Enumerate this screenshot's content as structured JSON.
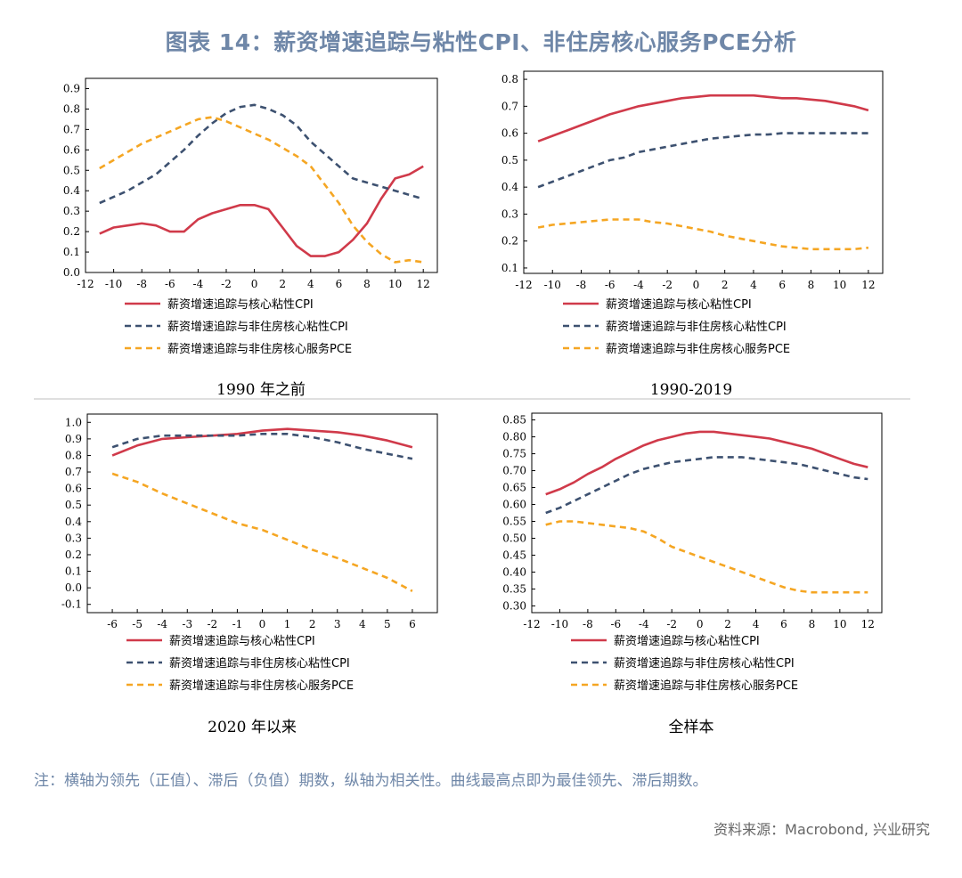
{
  "title": "图表 14：薪资增速追踪与粘性CPI、非住房核心服务PCE分析",
  "note": "注：横轴为领先（正值）、滞后（负值）期数，纵轴为相关性。曲线最高点即为最佳领先、滞后期数。",
  "source": "资料来源：Macrobond, 兴业研究",
  "colors": {
    "sticky_cpi": "#d03a4a",
    "nonhousing_cpi": "#3d5170",
    "pce": "#f5a623"
  },
  "legend": [
    {
      "name": "薪资增速追踪与核心粘性CPI",
      "style": "solid",
      "color": "#d03a4a"
    },
    {
      "name": "薪资增速追踪与非住房核心粘性CPI",
      "style": "dashed",
      "color": "#3d5170"
    },
    {
      "name": "薪资增速追踪与非住房核心服务PCE",
      "style": "dashed",
      "color": "#f5a623"
    }
  ],
  "chart_data": [
    {
      "type": "line",
      "caption": "1990 年之前",
      "xlim": [
        -12,
        13
      ],
      "xticks": [
        -12,
        -10,
        -8,
        -6,
        -4,
        -2,
        0,
        2,
        4,
        6,
        8,
        10,
        12
      ],
      "ylim": [
        0,
        0.95
      ],
      "yticks": [
        0,
        0.1,
        0.2,
        0.3,
        0.4,
        0.5,
        0.6,
        0.7,
        0.8,
        0.9
      ],
      "ytick_labels": [
        "0.0",
        "0.1",
        "0.2",
        "0.3",
        "0.4",
        "0.5",
        "0.6",
        "0.7",
        "0.8",
        "0.9"
      ],
      "series": [
        {
          "name": "薪资增速追踪与核心粘性CPI",
          "x": [
            -11,
            -10,
            -9,
            -8,
            -7,
            -6,
            -5,
            -4,
            -3,
            -2,
            -1,
            0,
            1,
            2,
            3,
            4,
            5,
            6,
            7,
            8,
            9,
            10,
            11,
            12
          ],
          "values": [
            0.19,
            0.22,
            0.23,
            0.24,
            0.23,
            0.2,
            0.2,
            0.26,
            0.29,
            0.31,
            0.33,
            0.33,
            0.31,
            0.22,
            0.13,
            0.08,
            0.08,
            0.1,
            0.16,
            0.24,
            0.36,
            0.46,
            0.48,
            0.52
          ]
        },
        {
          "name": "薪资增速追踪与非住房核心粘性CPI",
          "x": [
            -11,
            -10,
            -9,
            -8,
            -7,
            -6,
            -5,
            -4,
            -3,
            -2,
            -1,
            0,
            1,
            2,
            3,
            4,
            5,
            6,
            7,
            8,
            9,
            10,
            11,
            12
          ],
          "values": [
            0.34,
            0.37,
            0.4,
            0.44,
            0.48,
            0.54,
            0.6,
            0.67,
            0.73,
            0.78,
            0.81,
            0.82,
            0.8,
            0.77,
            0.72,
            0.64,
            0.58,
            0.52,
            0.46,
            0.44,
            0.42,
            0.4,
            0.38,
            0.36
          ]
        },
        {
          "name": "薪资增速追踪与非住房核心服务PCE",
          "x": [
            -11,
            -10,
            -9,
            -8,
            -7,
            -6,
            -5,
            -4,
            -3,
            -2,
            -1,
            0,
            1,
            2,
            3,
            4,
            5,
            6,
            7,
            8,
            9,
            10,
            11,
            12
          ],
          "values": [
            0.51,
            0.55,
            0.59,
            0.63,
            0.66,
            0.69,
            0.72,
            0.75,
            0.76,
            0.74,
            0.71,
            0.68,
            0.65,
            0.61,
            0.57,
            0.52,
            0.43,
            0.34,
            0.23,
            0.15,
            0.09,
            0.05,
            0.06,
            0.05
          ]
        }
      ]
    },
    {
      "type": "line",
      "caption": "1990-2019",
      "xlim": [
        -12,
        13
      ],
      "xticks": [
        -12,
        -10,
        -8,
        -6,
        -4,
        -2,
        0,
        2,
        4,
        6,
        8,
        10,
        12
      ],
      "ylim": [
        0.08,
        0.83
      ],
      "yticks": [
        0.1,
        0.2,
        0.3,
        0.4,
        0.5,
        0.6,
        0.7,
        0.8
      ],
      "ytick_labels": [
        "0.1",
        "0.2",
        "0.3",
        "0.4",
        "0.5",
        "0.6",
        "0.7",
        "0.8"
      ],
      "series": [
        {
          "name": "薪资增速追踪与核心粘性CPI",
          "x": [
            -11,
            -10,
            -9,
            -8,
            -7,
            -6,
            -5,
            -4,
            -3,
            -2,
            -1,
            0,
            1,
            2,
            3,
            4,
            5,
            6,
            7,
            8,
            9,
            10,
            11,
            12
          ],
          "values": [
            0.57,
            0.59,
            0.61,
            0.63,
            0.65,
            0.67,
            0.685,
            0.7,
            0.71,
            0.72,
            0.73,
            0.735,
            0.74,
            0.74,
            0.74,
            0.74,
            0.735,
            0.73,
            0.73,
            0.725,
            0.72,
            0.71,
            0.7,
            0.685
          ]
        },
        {
          "name": "薪资增速追踪与非住房核心粘性CPI",
          "x": [
            -11,
            -10,
            -9,
            -8,
            -7,
            -6,
            -5,
            -4,
            -3,
            -2,
            -1,
            0,
            1,
            2,
            3,
            4,
            5,
            6,
            7,
            8,
            9,
            10,
            11,
            12
          ],
          "values": [
            0.4,
            0.42,
            0.44,
            0.46,
            0.48,
            0.5,
            0.51,
            0.53,
            0.54,
            0.55,
            0.56,
            0.57,
            0.58,
            0.585,
            0.59,
            0.595,
            0.595,
            0.6,
            0.6,
            0.6,
            0.6,
            0.6,
            0.6,
            0.6
          ]
        },
        {
          "name": "薪资增速追踪与非住房核心服务PCE",
          "x": [
            -11,
            -10,
            -9,
            -8,
            -7,
            -6,
            -5,
            -4,
            -3,
            -2,
            -1,
            0,
            1,
            2,
            3,
            4,
            5,
            6,
            7,
            8,
            9,
            10,
            11,
            12
          ],
          "values": [
            0.25,
            0.26,
            0.265,
            0.27,
            0.275,
            0.28,
            0.28,
            0.28,
            0.27,
            0.265,
            0.255,
            0.245,
            0.235,
            0.22,
            0.21,
            0.2,
            0.19,
            0.18,
            0.175,
            0.17,
            0.17,
            0.17,
            0.17,
            0.175
          ]
        }
      ]
    },
    {
      "type": "line",
      "caption": "2020 年以来",
      "xlim": [
        -7,
        7
      ],
      "xticks": [
        -6,
        -5,
        -4,
        -3,
        -2,
        -1,
        0,
        1,
        2,
        3,
        4,
        5,
        6
      ],
      "ylim": [
        -0.15,
        1.05
      ],
      "yticks": [
        -0.1,
        0,
        0.1,
        0.2,
        0.3,
        0.4,
        0.5,
        0.6,
        0.7,
        0.8,
        0.9,
        1.0
      ],
      "ytick_labels": [
        "-0.1",
        "0.0",
        "0.1",
        "0.2",
        "0.3",
        "0.4",
        "0.5",
        "0.6",
        "0.7",
        "0.8",
        "0.9",
        "1.0"
      ],
      "series": [
        {
          "name": "薪资增速追踪与核心粘性CPI",
          "x": [
            -6,
            -5,
            -4,
            -3,
            -2,
            -1,
            0,
            1,
            2,
            3,
            4,
            5,
            6
          ],
          "values": [
            0.8,
            0.86,
            0.9,
            0.91,
            0.92,
            0.93,
            0.95,
            0.96,
            0.95,
            0.94,
            0.92,
            0.89,
            0.85
          ]
        },
        {
          "name": "薪资增速追踪与非住房核心粘性CPI",
          "x": [
            -6,
            -5,
            -4,
            -3,
            -2,
            -1,
            0,
            1,
            2,
            3,
            4,
            5,
            6
          ],
          "values": [
            0.85,
            0.9,
            0.92,
            0.92,
            0.92,
            0.92,
            0.93,
            0.93,
            0.91,
            0.88,
            0.84,
            0.81,
            0.78
          ]
        },
        {
          "name": "薪资增速追踪与非住房核心服务PCE",
          "x": [
            -6,
            -5,
            -4,
            -3,
            -2,
            -1,
            0,
            1,
            2,
            3,
            4,
            5,
            6
          ],
          "values": [
            0.69,
            0.64,
            0.57,
            0.51,
            0.45,
            0.39,
            0.35,
            0.29,
            0.23,
            0.18,
            0.12,
            0.06,
            -0.02
          ]
        }
      ]
    },
    {
      "type": "line",
      "caption": "全样本",
      "xlim": [
        -12,
        13
      ],
      "xticks": [
        -12,
        -10,
        -8,
        -6,
        -4,
        -2,
        0,
        2,
        4,
        6,
        8,
        10,
        12
      ],
      "ylim": [
        0.28,
        0.87
      ],
      "yticks": [
        0.3,
        0.35,
        0.4,
        0.45,
        0.5,
        0.55,
        0.6,
        0.65,
        0.7,
        0.75,
        0.8,
        0.85
      ],
      "ytick_labels": [
        "0.30",
        "0.35",
        "0.40",
        "0.45",
        "0.50",
        "0.55",
        "0.60",
        "0.65",
        "0.70",
        "0.75",
        "0.80",
        "0.85"
      ],
      "series": [
        {
          "name": "薪资增速追踪与核心粘性CPI",
          "x": [
            -11,
            -10,
            -9,
            -8,
            -7,
            -6,
            -5,
            -4,
            -3,
            -2,
            -1,
            0,
            1,
            2,
            3,
            4,
            5,
            6,
            7,
            8,
            9,
            10,
            11,
            12
          ],
          "values": [
            0.63,
            0.645,
            0.665,
            0.69,
            0.71,
            0.735,
            0.755,
            0.775,
            0.79,
            0.8,
            0.81,
            0.815,
            0.815,
            0.81,
            0.805,
            0.8,
            0.795,
            0.785,
            0.775,
            0.765,
            0.75,
            0.735,
            0.72,
            0.71
          ]
        },
        {
          "name": "薪资增速追踪与非住房核心粘性CPI",
          "x": [
            -11,
            -10,
            -9,
            -8,
            -7,
            -6,
            -5,
            -4,
            -3,
            -2,
            -1,
            0,
            1,
            2,
            3,
            4,
            5,
            6,
            7,
            8,
            9,
            10,
            11,
            12
          ],
          "values": [
            0.575,
            0.59,
            0.61,
            0.63,
            0.65,
            0.67,
            0.69,
            0.705,
            0.715,
            0.725,
            0.73,
            0.735,
            0.74,
            0.74,
            0.74,
            0.735,
            0.73,
            0.725,
            0.72,
            0.71,
            0.7,
            0.69,
            0.68,
            0.675
          ]
        },
        {
          "name": "薪资增速追踪与非住房核心服务PCE",
          "x": [
            -11,
            -10,
            -9,
            -8,
            -7,
            -6,
            -5,
            -4,
            -3,
            -2,
            -1,
            0,
            1,
            2,
            3,
            4,
            5,
            6,
            7,
            8,
            9,
            10,
            11,
            12
          ],
          "values": [
            0.54,
            0.55,
            0.55,
            0.545,
            0.54,
            0.535,
            0.53,
            0.52,
            0.5,
            0.475,
            0.46,
            0.445,
            0.43,
            0.415,
            0.4,
            0.385,
            0.37,
            0.355,
            0.345,
            0.34,
            0.34,
            0.34,
            0.34,
            0.34
          ]
        }
      ]
    }
  ]
}
